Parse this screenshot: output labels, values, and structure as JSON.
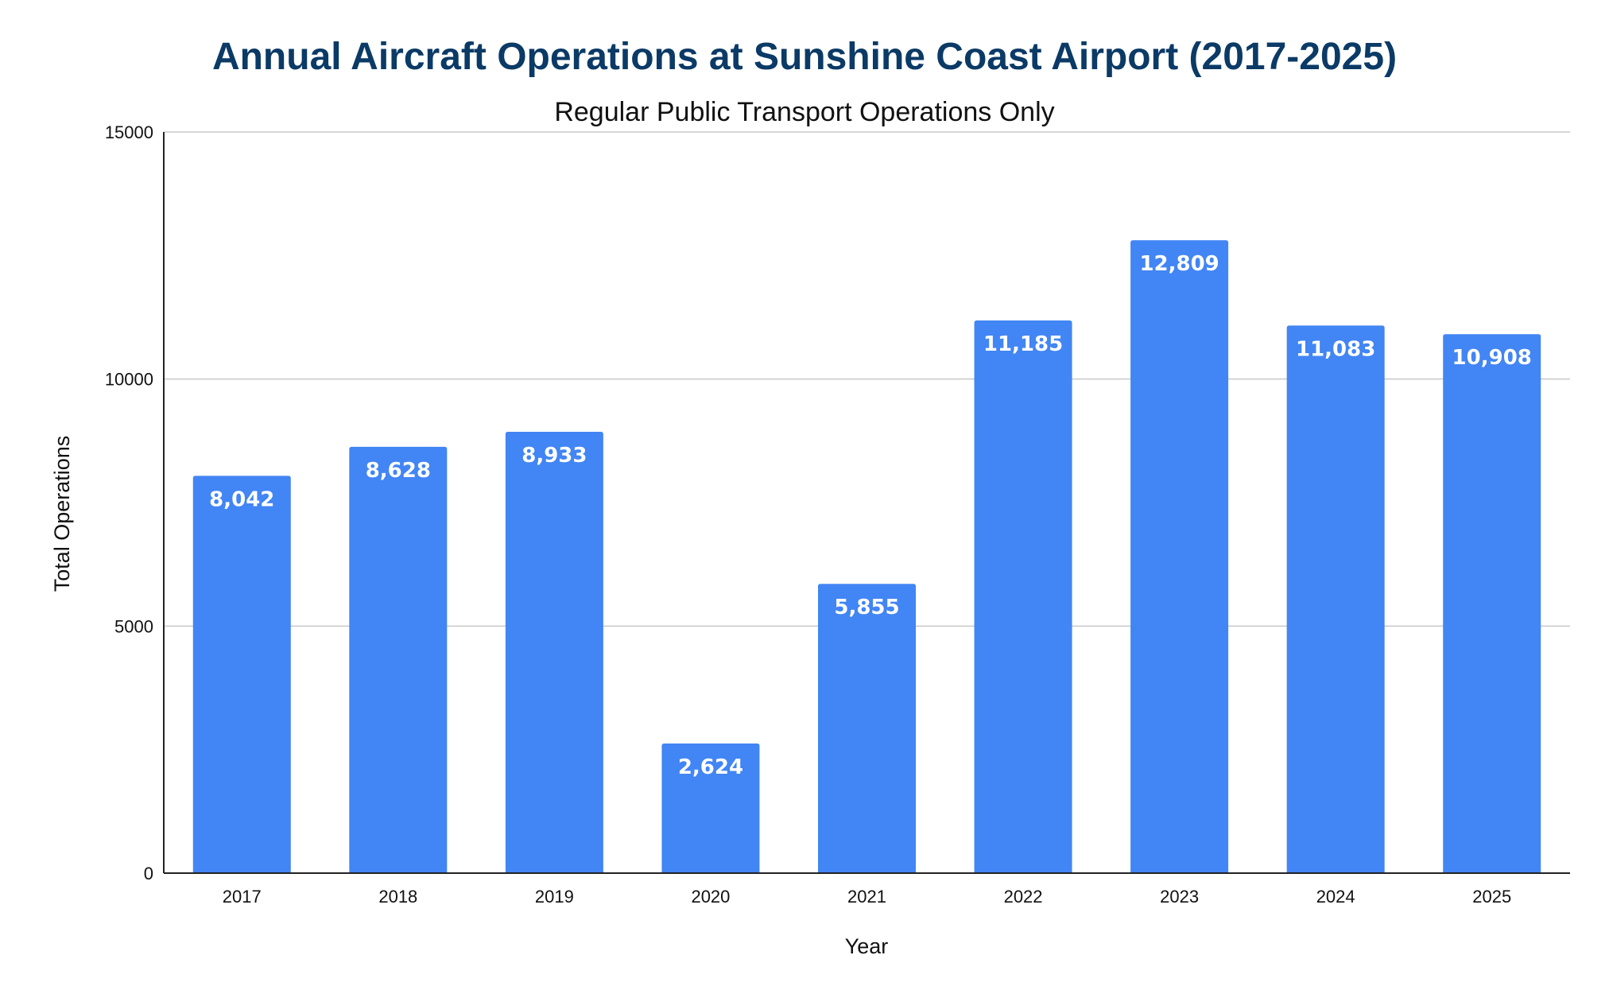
{
  "chart_data": {
    "type": "bar",
    "title": "Annual Aircraft Operations at Sunshine Coast Airport (2017-2025)",
    "subtitle": "Regular Public Transport Operations Only",
    "xlabel": "Year",
    "ylabel": "Total Operations",
    "categories": [
      "2017",
      "2018",
      "2019",
      "2020",
      "2021",
      "2022",
      "2023",
      "2024",
      "2025"
    ],
    "values": [
      8042,
      8628,
      8933,
      2624,
      5855,
      11185,
      12809,
      11083,
      10908
    ],
    "data_labels": [
      "8,042",
      "8,628",
      "8,933",
      "2,624",
      "5,855",
      "11,185",
      "12,809",
      "11,083",
      "10,908"
    ],
    "ylim": [
      0,
      15000
    ],
    "yticks": [
      0,
      5000,
      10000,
      15000
    ],
    "ytick_labels": [
      "0",
      "5000",
      "10000",
      "15000"
    ],
    "grid": true,
    "legend": "none",
    "bar_color": "#4285f4",
    "title_color": "#0b3a66",
    "grid_color": "#c8c8c8"
  }
}
